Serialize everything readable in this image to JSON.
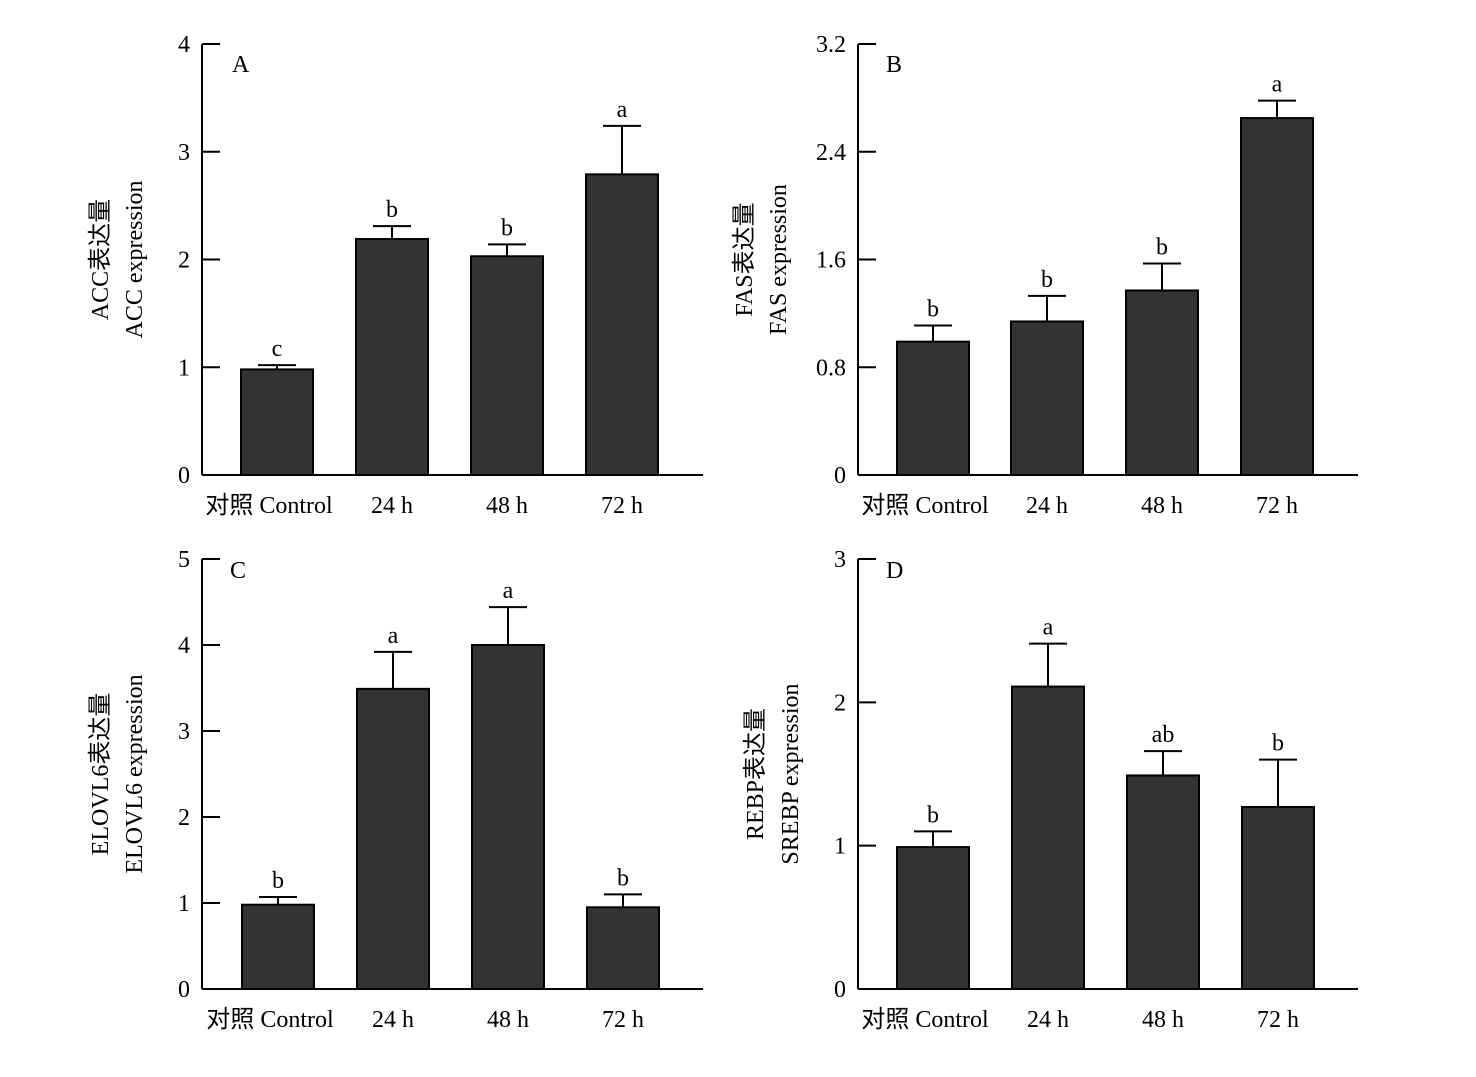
{
  "figure": {
    "colors": {
      "bar": "#333333",
      "axis": "#000000",
      "background": "#ffffff"
    }
  },
  "chart_data": [
    {
      "type": "bar",
      "panel": "A",
      "categories": [
        "对照 Control",
        "24 h",
        "48 h",
        "72 h"
      ],
      "values": [
        0.98,
        2.19,
        2.03,
        2.79
      ],
      "errors": [
        0.04,
        0.12,
        0.11,
        0.45
      ],
      "significance": [
        "c",
        "b",
        "b",
        "a"
      ],
      "ylabel_lines": [
        "ACC表达量",
        "ACC expression"
      ],
      "ylim": [
        0,
        4
      ],
      "yticks": [
        "0",
        "1",
        "2",
        "3",
        "4"
      ],
      "grid": false
    },
    {
      "type": "bar",
      "panel": "B",
      "categories": [
        "对照 Control",
        "24 h",
        "48 h",
        "72 h"
      ],
      "values": [
        0.99,
        1.14,
        1.37,
        2.65
      ],
      "errors": [
        0.12,
        0.19,
        0.2,
        0.13
      ],
      "significance": [
        "b",
        "b",
        "b",
        "a"
      ],
      "ylabel_lines": [
        "FAS表达量",
        "FAS expression"
      ],
      "ylim": [
        0,
        3.2
      ],
      "yticks": [
        "0",
        "0.8",
        "1.6",
        "2.4",
        "3.2"
      ],
      "grid": false
    },
    {
      "type": "bar",
      "panel": "C",
      "categories": [
        "对照 Control",
        "24 h",
        "48 h",
        "72 h"
      ],
      "values": [
        0.98,
        3.49,
        4.0,
        0.95
      ],
      "errors": [
        0.09,
        0.43,
        0.44,
        0.15
      ],
      "significance": [
        "b",
        "a",
        "a",
        "b"
      ],
      "ylabel_lines": [
        "ELOVL6表达量",
        "ELOVL6 expression"
      ],
      "ylim": [
        0,
        5
      ],
      "yticks": [
        "0",
        "1",
        "2",
        "3",
        "4",
        "5"
      ],
      "grid": false
    },
    {
      "type": "bar",
      "panel": "D",
      "categories": [
        "对照 Control",
        "24 h",
        "48 h",
        "72 h"
      ],
      "values": [
        0.99,
        2.11,
        1.49,
        1.27
      ],
      "errors": [
        0.11,
        0.3,
        0.17,
        0.33
      ],
      "significance": [
        "b",
        "a",
        "ab",
        "b"
      ],
      "ylabel_lines": [
        "REBP表达量",
        "SREBP expression"
      ],
      "ylim": [
        0,
        3
      ],
      "yticks": [
        "0",
        "1",
        "2",
        "3"
      ],
      "grid": false
    }
  ]
}
